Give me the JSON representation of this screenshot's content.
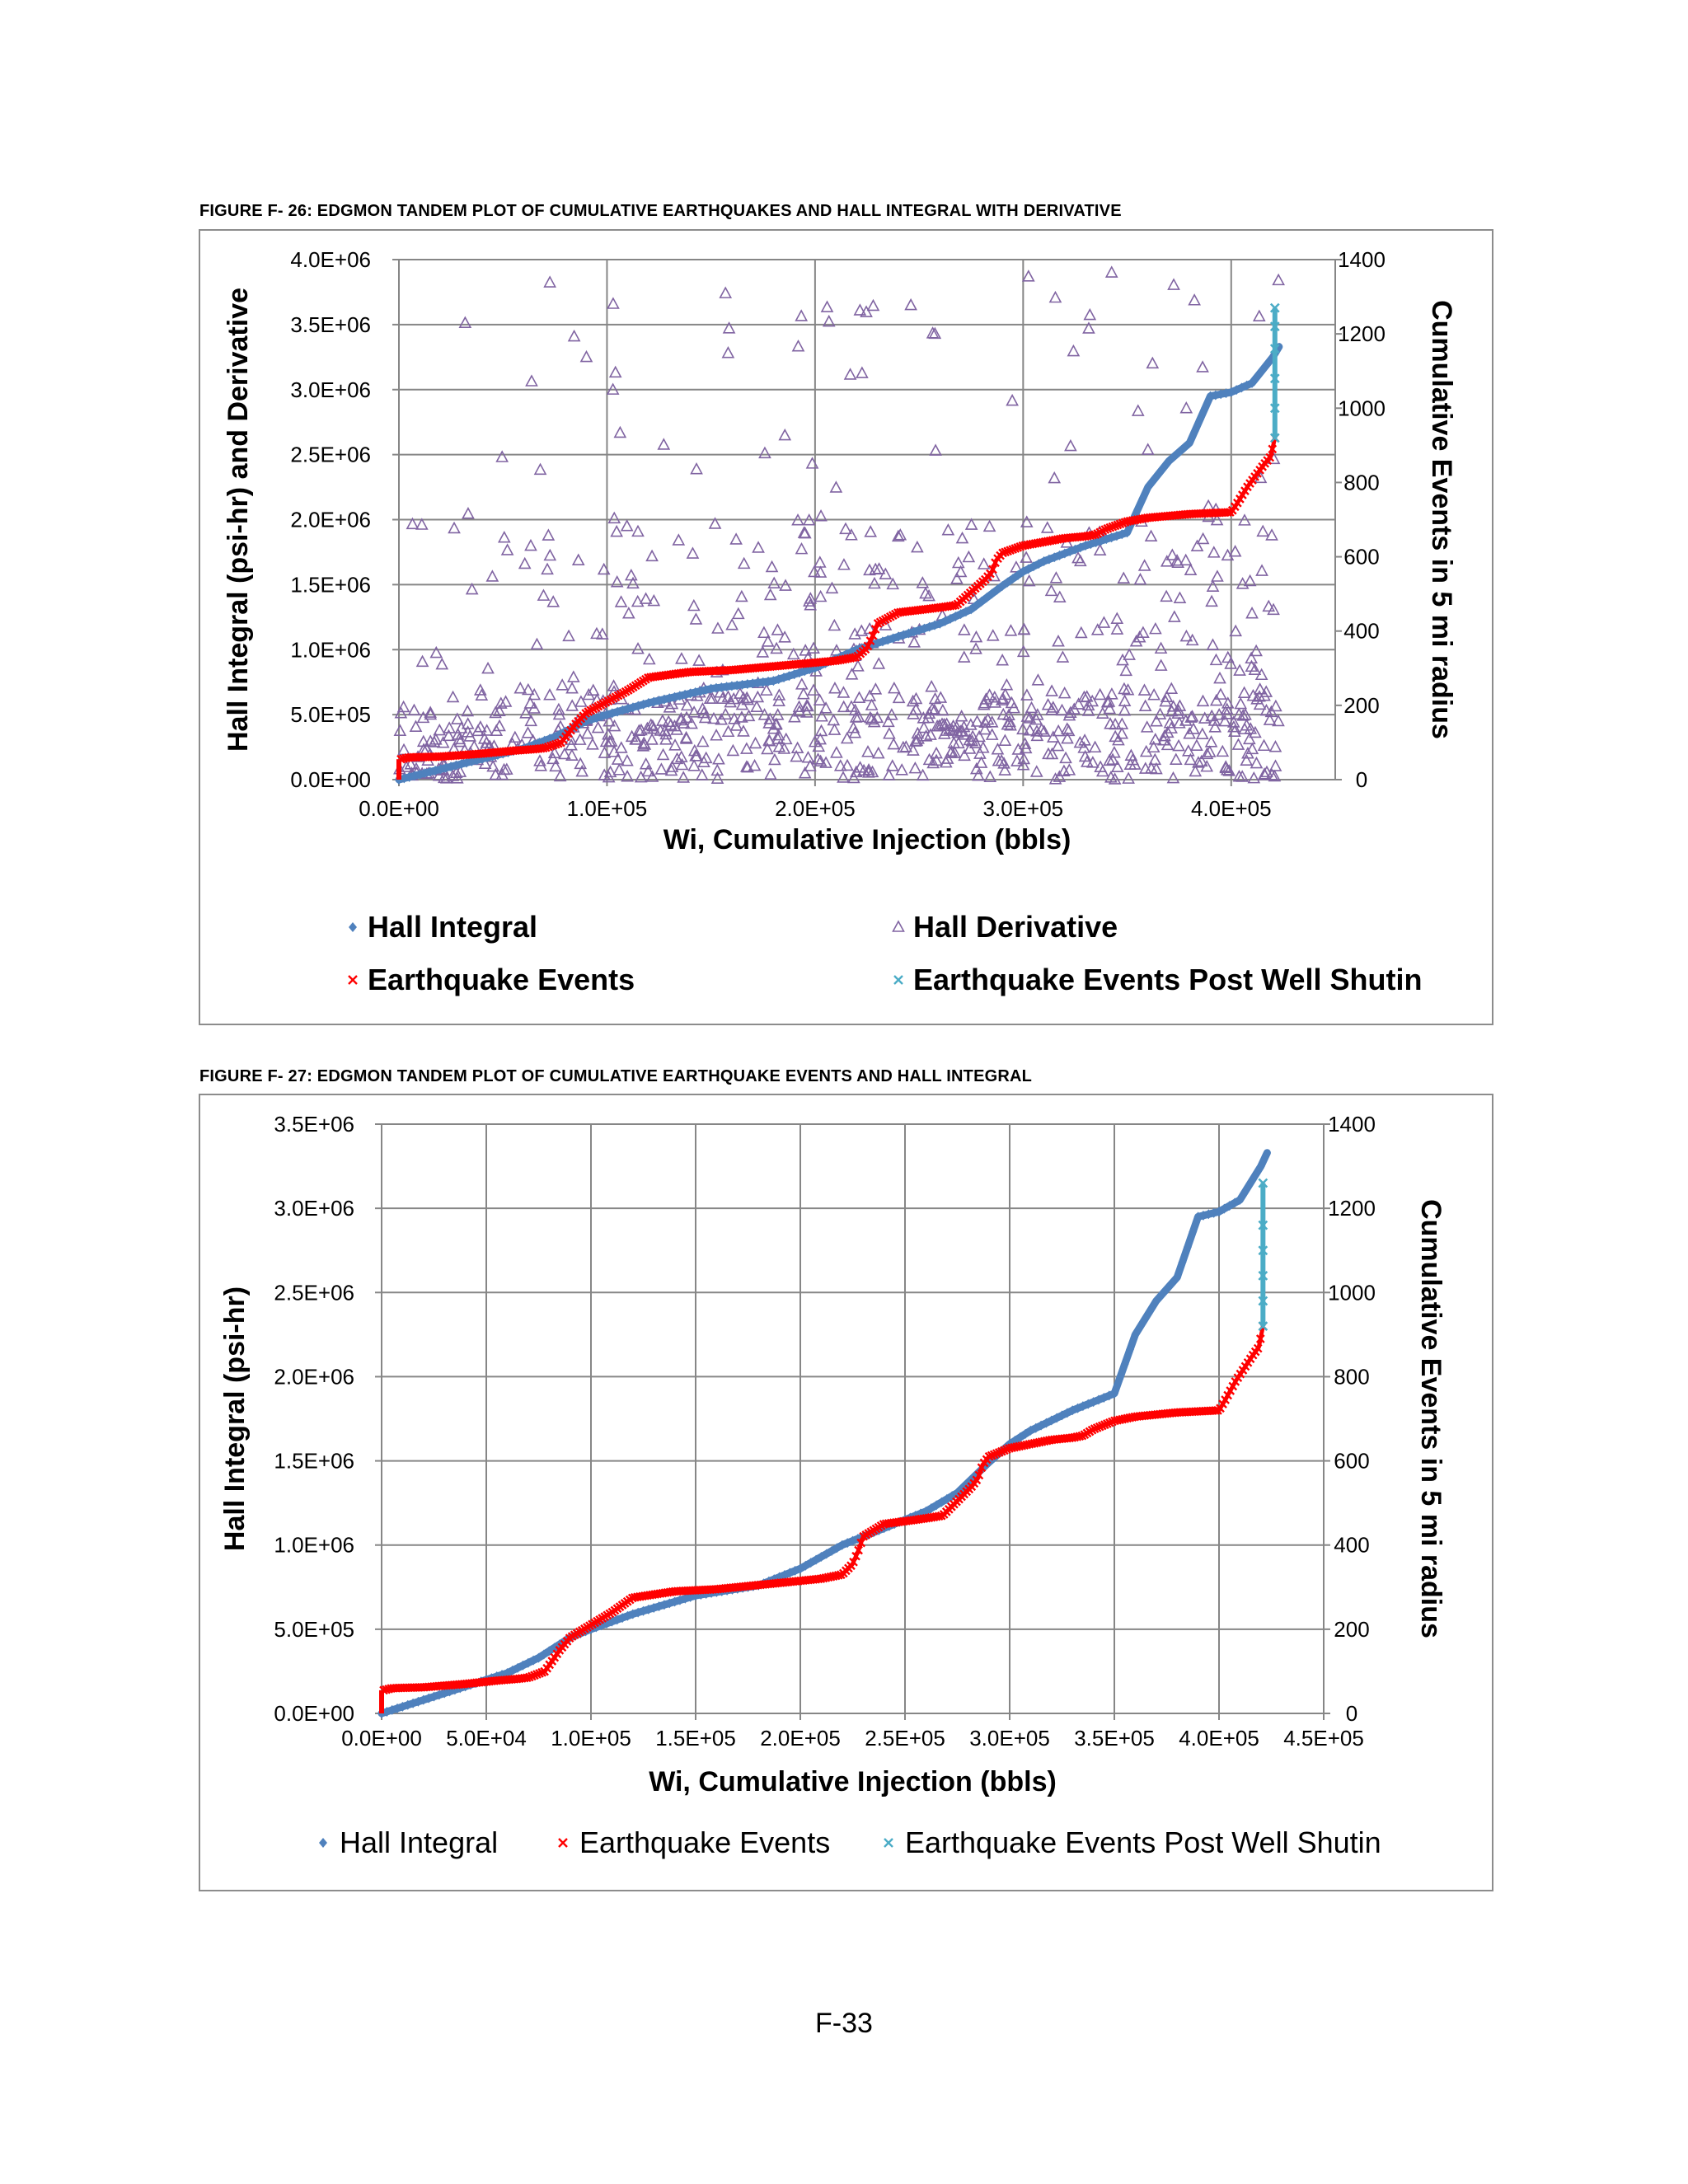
{
  "page": {
    "number": "F-33"
  },
  "colors": {
    "hall_integral": "#4f81bd",
    "earthquake_events": "#ff0000",
    "post_shutin": "#4bacc6",
    "hall_derivative": "#8064a2",
    "grid": "#868686"
  },
  "chart_data": [
    {
      "caption": "FIGURE F- 26: EDGMON TANDEM PLOT OF CUMULATIVE EARTHQUAKES AND HALL INTEGRAL WITH DERIVATIVE",
      "type": "scatter",
      "xlabel": "Wi, Cumulative Injection (bbls)",
      "ylabel": "Hall Integral (psi-hr) and Derivative",
      "y2label": "Cumulative Events  in 5 mi radius",
      "xlim": [
        0,
        450000
      ],
      "ylim": [
        0,
        4000000
      ],
      "y2lim": [
        0,
        1400
      ],
      "xticks": [
        "0.0E+00",
        "1.0E+05",
        "2.0E+05",
        "3.0E+05",
        "4.0E+05"
      ],
      "xtick_values": [
        0,
        100000,
        200000,
        300000,
        400000
      ],
      "yticks": [
        "0.0E+00",
        "5.0E+05",
        "1.0E+06",
        "1.5E+06",
        "2.0E+06",
        "2.5E+06",
        "3.0E+06",
        "3.5E+06",
        "4.0E+06"
      ],
      "y2ticks": [
        "0",
        "200",
        "400",
        "600",
        "800",
        "1000",
        "1200",
        "1400"
      ],
      "grid": true,
      "legend_position": "bottom",
      "legend": [
        "Hall Integral",
        "Hall Derivative",
        "Earthquake Events",
        "Earthquake Events Post Well Shutin"
      ],
      "series": [
        {
          "name": "Hall Integral",
          "axis": "left",
          "marker": "diamond",
          "x": [
            0,
            20000,
            40000,
            60000,
            75000,
            90000,
            100000,
            120000,
            150000,
            180000,
            200000,
            220000,
            240000,
            260000,
            275000,
            290000,
            300000,
            310000,
            330000,
            340000,
            350000,
            360000,
            370000,
            380000,
            390000,
            400000,
            410000,
            420000,
            423000
          ],
          "y": [
            0,
            80000,
            160000,
            240000,
            330000,
            450000,
            500000,
            590000,
            700000,
            760000,
            860000,
            1000000,
            1100000,
            1200000,
            1310000,
            1490000,
            1600000,
            1680000,
            1800000,
            1850000,
            1900000,
            2250000,
            2450000,
            2590000,
            2950000,
            2980000,
            3050000,
            3250000,
            3330000
          ]
        },
        {
          "name": "Earthquake Events",
          "axis": "right",
          "marker": "x",
          "x": [
            0,
            1000,
            5000,
            20000,
            40000,
            55000,
            65000,
            70000,
            78000,
            85000,
            90000,
            100000,
            110000,
            120000,
            140000,
            160000,
            170000,
            180000,
            190000,
            210000,
            220000,
            225000,
            228000,
            230000,
            240000,
            255000,
            262000,
            268000,
            272000,
            278000,
            282000,
            285000,
            287000,
            290000,
            300000,
            320000,
            330000,
            335000,
            340000,
            350000,
            360000,
            380000,
            400000,
            403000,
            408000,
            412000,
            416000,
            419000,
            421000
          ],
          "y": [
            0,
            55,
            60,
            62,
            70,
            78,
            82,
            85,
            100,
            150,
            180,
            210,
            240,
            275,
            290,
            295,
            300,
            305,
            310,
            320,
            330,
            355,
            390,
            420,
            450,
            460,
            465,
            470,
            490,
            520,
            540,
            560,
            590,
            610,
            630,
            650,
            655,
            660,
            675,
            695,
            705,
            715,
            720,
            745,
            790,
            820,
            850,
            870,
            920
          ]
        },
        {
          "name": "Earthquake Events Post Well Shutin",
          "axis": "right",
          "marker": "x",
          "x": [
            421000,
            421000,
            421000,
            421000,
            421000,
            421000
          ],
          "y": [
            920,
            1000,
            1080,
            1160,
            1220,
            1270
          ]
        },
        {
          "name": "Hall Derivative",
          "axis": "left",
          "marker": "triangle",
          "note": "approximately 900 scattered points between 0 and 4.0E+06"
        }
      ]
    },
    {
      "caption": "FIGURE F- 27: EDGMON TANDEM PLOT OF CUMULATIVE EARTHQUAKE EVENTS AND HALL INTEGRAL",
      "type": "line",
      "xlabel": "Wi, Cumulative Injection (bbls)",
      "ylabel": "Hall Integral (psi-hr)",
      "y2label": "Cumulative Events  in 5 mi radius",
      "xlim": [
        0,
        450000
      ],
      "ylim": [
        0,
        3500000
      ],
      "y2lim": [
        0,
        1400
      ],
      "xticks": [
        "0.0E+00",
        "5.0E+04",
        "1.0E+05",
        "1.5E+05",
        "2.0E+05",
        "2.5E+05",
        "3.0E+05",
        "3.5E+05",
        "4.0E+05",
        "4.5E+05"
      ],
      "xtick_values": [
        0,
        50000,
        100000,
        150000,
        200000,
        250000,
        300000,
        350000,
        400000,
        450000
      ],
      "yticks": [
        "0.0E+00",
        "5.0E+05",
        "1.0E+06",
        "1.5E+06",
        "2.0E+06",
        "2.5E+06",
        "3.0E+06",
        "3.5E+06"
      ],
      "y2ticks": [
        "0",
        "200",
        "400",
        "600",
        "800",
        "1000",
        "1200",
        "1400"
      ],
      "grid": true,
      "legend_position": "bottom",
      "legend": [
        "Hall Integral",
        "Earthquake Events",
        "Earthquake Events Post Well Shutin"
      ],
      "series": [
        {
          "name": "Hall Integral",
          "axis": "left",
          "marker": "diamond",
          "x": [
            0,
            20000,
            40000,
            60000,
            75000,
            90000,
            100000,
            120000,
            150000,
            180000,
            200000,
            220000,
            240000,
            260000,
            275000,
            290000,
            300000,
            310000,
            330000,
            340000,
            350000,
            360000,
            370000,
            380000,
            390000,
            400000,
            410000,
            420000,
            423000
          ],
          "y": [
            0,
            80000,
            160000,
            240000,
            330000,
            450000,
            500000,
            590000,
            700000,
            760000,
            860000,
            1000000,
            1100000,
            1200000,
            1310000,
            1490000,
            1600000,
            1680000,
            1800000,
            1850000,
            1900000,
            2250000,
            2450000,
            2590000,
            2950000,
            2980000,
            3050000,
            3250000,
            3330000
          ]
        },
        {
          "name": "Earthquake Events",
          "axis": "right",
          "marker": "x",
          "x": [
            0,
            1000,
            5000,
            20000,
            40000,
            55000,
            65000,
            70000,
            78000,
            85000,
            90000,
            100000,
            110000,
            120000,
            140000,
            160000,
            170000,
            180000,
            190000,
            210000,
            220000,
            225000,
            228000,
            230000,
            240000,
            255000,
            262000,
            268000,
            272000,
            278000,
            282000,
            285000,
            287000,
            290000,
            300000,
            320000,
            330000,
            335000,
            340000,
            350000,
            360000,
            380000,
            400000,
            403000,
            408000,
            412000,
            416000,
            419000,
            421000
          ],
          "y": [
            0,
            55,
            60,
            62,
            70,
            78,
            82,
            85,
            100,
            150,
            180,
            210,
            240,
            275,
            290,
            295,
            300,
            305,
            310,
            320,
            330,
            355,
            390,
            420,
            450,
            460,
            465,
            470,
            490,
            520,
            540,
            560,
            590,
            610,
            630,
            650,
            655,
            660,
            675,
            695,
            705,
            715,
            720,
            745,
            790,
            820,
            850,
            870,
            920
          ]
        },
        {
          "name": "Earthquake Events Post Well Shutin",
          "axis": "right",
          "marker": "x",
          "x": [
            421000,
            421000,
            421000,
            421000,
            421000,
            421000
          ],
          "y": [
            920,
            980,
            1040,
            1100,
            1160,
            1260
          ]
        }
      ]
    }
  ]
}
